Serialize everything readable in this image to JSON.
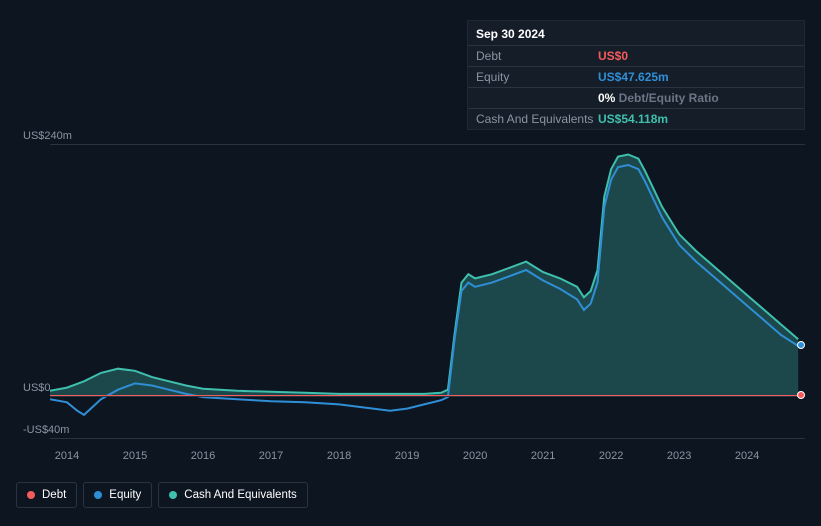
{
  "tooltip": {
    "date": "Sep 30 2024",
    "rows": [
      {
        "label": "Debt",
        "value": "US$0",
        "cls": "val-debt"
      },
      {
        "label": "Equity",
        "value": "US$47.625m",
        "cls": "val-equity"
      },
      {
        "label": "",
        "value": "0%",
        "suffix": " Debt/Equity Ratio",
        "cls": ""
      },
      {
        "label": "Cash And Equivalents",
        "value": "US$54.118m",
        "cls": "val-cash"
      }
    ]
  },
  "legend": [
    {
      "name": "Debt",
      "dot": "dot-debt"
    },
    {
      "name": "Equity",
      "dot": "dot-equity"
    },
    {
      "name": "Cash And Equivalents",
      "dot": "dot-cash"
    }
  ],
  "chart": {
    "type": "line-area",
    "background_color": "#0d1521",
    "grid_color": "#2a3342",
    "ylim": [
      -40,
      240
    ],
    "yticks": [
      {
        "v": 240,
        "label": "US$240m"
      },
      {
        "v": 0,
        "label": "US$0"
      },
      {
        "v": -40,
        "label": "-US$40m"
      }
    ],
    "years": [
      2014,
      2015,
      2016,
      2017,
      2018,
      2019,
      2020,
      2021,
      2022,
      2023,
      2024
    ],
    "xrange": [
      2013.75,
      2024.85
    ],
    "series": {
      "cash": {
        "color": "#3fbfad",
        "area_color": "rgba(63,191,173,0.30)",
        "width": 2,
        "data": [
          [
            2013.75,
            5
          ],
          [
            2014.0,
            8
          ],
          [
            2014.25,
            14
          ],
          [
            2014.5,
            22
          ],
          [
            2014.75,
            26
          ],
          [
            2015.0,
            24
          ],
          [
            2015.25,
            18
          ],
          [
            2015.5,
            14
          ],
          [
            2015.75,
            10
          ],
          [
            2016.0,
            7
          ],
          [
            2016.5,
            5
          ],
          [
            2017.0,
            4
          ],
          [
            2017.5,
            3
          ],
          [
            2018.0,
            2
          ],
          [
            2018.5,
            2
          ],
          [
            2019.0,
            2
          ],
          [
            2019.25,
            2
          ],
          [
            2019.5,
            3
          ],
          [
            2019.6,
            6
          ],
          [
            2019.7,
            60
          ],
          [
            2019.8,
            108
          ],
          [
            2019.9,
            116
          ],
          [
            2020.0,
            112
          ],
          [
            2020.25,
            116
          ],
          [
            2020.5,
            122
          ],
          [
            2020.75,
            128
          ],
          [
            2021.0,
            118
          ],
          [
            2021.25,
            112
          ],
          [
            2021.5,
            104
          ],
          [
            2021.6,
            94
          ],
          [
            2021.7,
            100
          ],
          [
            2021.8,
            120
          ],
          [
            2021.9,
            190
          ],
          [
            2022.0,
            216
          ],
          [
            2022.1,
            228
          ],
          [
            2022.25,
            230
          ],
          [
            2022.4,
            226
          ],
          [
            2022.5,
            214
          ],
          [
            2022.75,
            180
          ],
          [
            2023.0,
            154
          ],
          [
            2023.25,
            138
          ],
          [
            2023.5,
            124
          ],
          [
            2023.75,
            110
          ],
          [
            2024.0,
            96
          ],
          [
            2024.25,
            82
          ],
          [
            2024.5,
            68
          ],
          [
            2024.75,
            54
          ]
        ]
      },
      "equity": {
        "color": "#2f8fd6",
        "width": 2,
        "data": [
          [
            2013.75,
            -3
          ],
          [
            2014.0,
            -6
          ],
          [
            2014.15,
            -14
          ],
          [
            2014.25,
            -18
          ],
          [
            2014.35,
            -12
          ],
          [
            2014.5,
            -3
          ],
          [
            2014.75,
            6
          ],
          [
            2015.0,
            12
          ],
          [
            2015.25,
            10
          ],
          [
            2015.5,
            6
          ],
          [
            2015.75,
            2
          ],
          [
            2016.0,
            -1
          ],
          [
            2016.5,
            -3
          ],
          [
            2017.0,
            -5
          ],
          [
            2017.5,
            -6
          ],
          [
            2018.0,
            -8
          ],
          [
            2018.25,
            -10
          ],
          [
            2018.5,
            -12
          ],
          [
            2018.75,
            -14
          ],
          [
            2019.0,
            -12
          ],
          [
            2019.25,
            -8
          ],
          [
            2019.5,
            -4
          ],
          [
            2019.6,
            -1
          ],
          [
            2019.7,
            55
          ],
          [
            2019.8,
            100
          ],
          [
            2019.9,
            108
          ],
          [
            2020.0,
            104
          ],
          [
            2020.25,
            108
          ],
          [
            2020.5,
            114
          ],
          [
            2020.75,
            120
          ],
          [
            2021.0,
            110
          ],
          [
            2021.25,
            102
          ],
          [
            2021.5,
            92
          ],
          [
            2021.6,
            82
          ],
          [
            2021.7,
            88
          ],
          [
            2021.8,
            108
          ],
          [
            2021.9,
            180
          ],
          [
            2022.0,
            206
          ],
          [
            2022.1,
            218
          ],
          [
            2022.25,
            220
          ],
          [
            2022.4,
            216
          ],
          [
            2022.5,
            204
          ],
          [
            2022.75,
            170
          ],
          [
            2023.0,
            144
          ],
          [
            2023.25,
            128
          ],
          [
            2023.5,
            114
          ],
          [
            2023.75,
            100
          ],
          [
            2024.0,
            86
          ],
          [
            2024.25,
            72
          ],
          [
            2024.5,
            58
          ],
          [
            2024.75,
            47.6
          ]
        ]
      },
      "debt": {
        "color": "#f45b5b",
        "width": 2,
        "data": [
          [
            2013.75,
            0
          ],
          [
            2016.0,
            0
          ],
          [
            2018.0,
            0
          ],
          [
            2020.0,
            0
          ],
          [
            2022.0,
            0
          ],
          [
            2024.75,
            0
          ]
        ]
      }
    },
    "end_markers": [
      {
        "series": "debt",
        "x": 2024.8,
        "y": 0,
        "fill": "#f45b5b"
      },
      {
        "series": "equity",
        "x": 2024.8,
        "y": 47.6,
        "fill": "#2f8fd6"
      }
    ],
    "label_fontsize": 11,
    "label_color": "#8b94a3"
  }
}
